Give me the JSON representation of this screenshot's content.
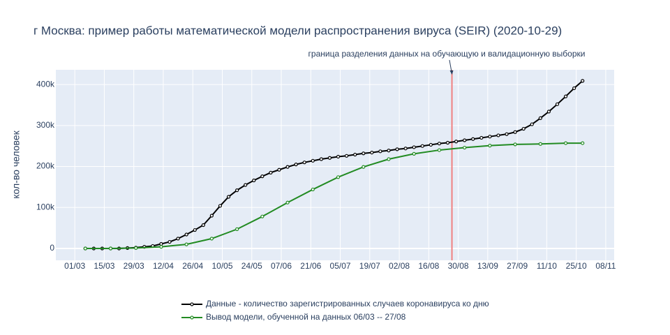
{
  "chart_data": {
    "type": "line",
    "title": "г Москва: пример работы математической модели распространения вируса (SEIR) (2020-10-29)",
    "ylabel": "кол-во человек",
    "xlim": [
      "20/02",
      "12/11"
    ],
    "xticks": [
      "01/03",
      "15/03",
      "29/03",
      "12/04",
      "26/04",
      "10/05",
      "24/05",
      "07/06",
      "21/06",
      "05/07",
      "19/07",
      "02/08",
      "16/08",
      "30/08",
      "13/09",
      "27/09",
      "11/10",
      "25/10",
      "08/11"
    ],
    "ylim": [
      -29000,
      436000
    ],
    "yticks": [
      0,
      {
        "value": 100000,
        "label": "100k"
      },
      {
        "value": 200000,
        "label": "200k"
      },
      {
        "value": 300000,
        "label": "300k"
      },
      {
        "value": 400000,
        "label": "400k"
      }
    ],
    "grid": true,
    "legend": "bottom",
    "vline": {
      "x": "27/08",
      "color": "#f08080",
      "annotation": "граница разделения данных на обучающую и валидационную выборки"
    },
    "series": [
      {
        "name": "Данные - количество зарегистрированных случаев коронавируса ко дню",
        "color": "#000000",
        "x": [
          "06/03",
          "10/03",
          "14/03",
          "18/03",
          "22/03",
          "26/03",
          "30/03",
          "03/04",
          "07/04",
          "11/04",
          "15/04",
          "19/04",
          "23/04",
          "27/04",
          "01/05",
          "05/05",
          "09/05",
          "13/05",
          "17/05",
          "21/05",
          "25/05",
          "29/05",
          "02/06",
          "06/06",
          "10/06",
          "14/06",
          "18/06",
          "22/06",
          "26/06",
          "30/06",
          "04/07",
          "08/07",
          "12/07",
          "16/07",
          "20/07",
          "24/07",
          "28/07",
          "01/08",
          "05/08",
          "09/08",
          "13/08",
          "17/08",
          "21/08",
          "25/08",
          "29/08",
          "02/09",
          "06/09",
          "10/09",
          "14/09",
          "18/09",
          "22/09",
          "26/09",
          "30/09",
          "04/10",
          "08/10",
          "12/10",
          "16/10",
          "20/10",
          "24/10",
          "28/10"
        ],
        "values": [
          0,
          0,
          0,
          0,
          0,
          1000,
          2000,
          4000,
          6000,
          11000,
          16000,
          24000,
          34000,
          45000,
          57000,
          80000,
          104000,
          126000,
          142000,
          155000,
          166000,
          176000,
          185000,
          192000,
          199000,
          205000,
          210000,
          214000,
          218000,
          221000,
          224000,
          226000,
          229000,
          232000,
          234000,
          237000,
          239000,
          242000,
          244000,
          247000,
          250000,
          253000,
          256000,
          258000,
          261000,
          264000,
          267000,
          270000,
          273000,
          276000,
          279000,
          284000,
          292000,
          303000,
          318000,
          334000,
          352000,
          371000,
          391000,
          409000
        ]
      },
      {
        "name": "Вывод модели, обученной на данных 06/03 -- 27/08",
        "color": "#228b22",
        "x": [
          "06/03",
          "18/03",
          "30/03",
          "11/04",
          "23/04",
          "05/05",
          "17/05",
          "29/05",
          "10/06",
          "22/06",
          "04/07",
          "16/07",
          "28/07",
          "09/08",
          "21/08",
          "02/09",
          "14/09",
          "26/09",
          "08/10",
          "20/10",
          "28/10"
        ],
        "values": [
          0,
          0,
          1000,
          4000,
          10000,
          24000,
          47000,
          78000,
          112000,
          144000,
          174000,
          199000,
          218000,
          231000,
          240000,
          246000,
          251000,
          254000,
          255000,
          257000,
          257000
        ]
      }
    ]
  }
}
